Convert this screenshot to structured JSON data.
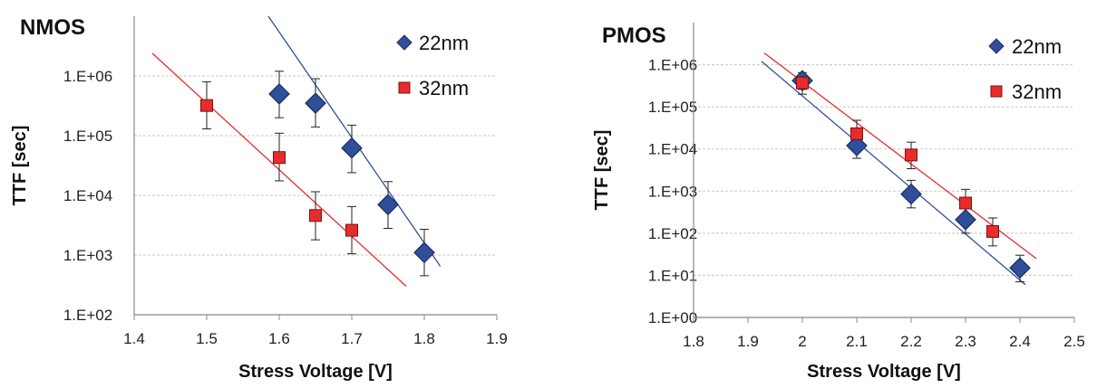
{
  "chart_data": [
    {
      "type": "scatter",
      "title": "NMOS",
      "xlabel": "Stress Voltage [V]",
      "ylabel": "TTF [sec]",
      "xlim": [
        1.4,
        1.9
      ],
      "ylim": [
        100,
        10000000
      ],
      "y_scale": "log",
      "grid": "horizontal",
      "legend": "top-right",
      "x_ticks": [
        "1.4",
        "1.5",
        "1.6",
        "1.7",
        "1.8",
        "1.9"
      ],
      "y_ticks": [
        "1.E+02",
        "1.E+03",
        "1.E+04",
        "1.E+05",
        "1.E+06"
      ],
      "series": [
        {
          "name": "22nm",
          "color": "#2f4f9a",
          "marker": "diamond",
          "x": [
            1.6,
            1.65,
            1.7,
            1.75,
            1.8
          ],
          "y": [
            500000,
            350000,
            62000,
            7000,
            1100
          ],
          "y_err_low": [
            200000,
            140000,
            24000,
            2800,
            450
          ],
          "y_err_high": [
            1200000,
            900000,
            150000,
            17000,
            2700
          ],
          "fit": {
            "x": [
              1.585,
              1.822
            ],
            "y": [
              10000000,
              650
            ]
          }
        },
        {
          "name": "32nm",
          "color": "#e82c2c",
          "marker": "square",
          "x": [
            1.5,
            1.6,
            1.65,
            1.7
          ],
          "y": [
            320000,
            43000,
            4600,
            2600
          ],
          "y_err_low": [
            130000,
            17500,
            1800,
            1050
          ],
          "y_err_high": [
            800000,
            110000,
            11500,
            6500
          ],
          "fit": {
            "x": [
              1.425,
              1.775
            ],
            "y": [
              2400000,
              300
            ]
          }
        }
      ]
    },
    {
      "type": "scatter",
      "title": "PMOS",
      "xlabel": "Stress Voltage [V]",
      "ylabel": "TTF [sec]",
      "xlim": [
        1.8,
        2.5
      ],
      "ylim": [
        1,
        10000000
      ],
      "y_scale": "log",
      "grid": "horizontal",
      "legend": "top-right",
      "x_ticks": [
        "1.8",
        "1.9",
        "2",
        "2.1",
        "2.2",
        "2.3",
        "2.4",
        "2.5"
      ],
      "y_ticks": [
        "1.E+00",
        "1.E+01",
        "1.E+02",
        "1.E+03",
        "1.E+04",
        "1.E+05",
        "1.E+06"
      ],
      "series": [
        {
          "name": "22nm",
          "color": "#2f4f9a",
          "marker": "diamond",
          "x": [
            2.0,
            2.1,
            2.2,
            2.3,
            2.4
          ],
          "y": [
            420000,
            12000,
            850,
            210,
            15
          ],
          "y_err_low": [
            260000,
            6000,
            400,
            100,
            7
          ],
          "y_err_high": [
            650000,
            24000,
            1800,
            450,
            30
          ],
          "fit": {
            "x": [
              1.925,
              2.41
            ],
            "y": [
              1200000,
              6
            ]
          }
        },
        {
          "name": "32nm",
          "color": "#e82c2c",
          "marker": "square",
          "x": [
            2.0,
            2.1,
            2.2,
            2.3,
            2.35
          ],
          "y": [
            370000,
            23000,
            7200,
            520,
            110
          ],
          "y_err_low": [
            200000,
            11000,
            3400,
            250,
            50
          ],
          "y_err_high": [
            550000,
            48000,
            14500,
            1100,
            230
          ],
          "fit": {
            "x": [
              1.93,
              2.43
            ],
            "y": [
              1900000,
              25
            ]
          }
        }
      ]
    }
  ]
}
